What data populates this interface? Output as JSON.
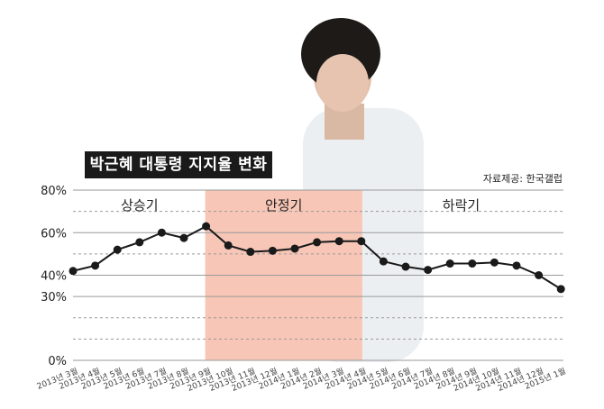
{
  "chart_data": {
    "type": "line",
    "title": "박근혜 대통령 지지율 변화",
    "source": "자료제공: 한국갤럽",
    "ylim": [
      0,
      80
    ],
    "y_ticks": [
      {
        "value": 0,
        "label": "0%"
      },
      {
        "value": 30,
        "label": "30%"
      },
      {
        "value": 40,
        "label": "40%"
      },
      {
        "value": 60,
        "label": "60%"
      },
      {
        "value": 80,
        "label": "80%"
      }
    ],
    "grid_dashed": [
      10,
      20,
      50,
      70
    ],
    "categories": [
      "2013년 3월",
      "2013년 4월",
      "2013년 5월",
      "2013년 6월",
      "2013년 7월",
      "2013년 8월",
      "2013년 9월",
      "2013년 10월",
      "2013년 11월",
      "2013년 12월",
      "2014년 1월",
      "2014년 2월",
      "2014년 3월",
      "2014년 4월",
      "2014년 5월",
      "2014년 6월",
      "2014년 7월",
      "2014년 8월",
      "2014년 9월",
      "2014년 10월",
      "2014년 11월",
      "2014년 12월",
      "2015년 1월"
    ],
    "series": [
      {
        "values": [
          42,
          44.5,
          52,
          55.5,
          60,
          57.5,
          63,
          54,
          51,
          51.5,
          52.5,
          55.5,
          56,
          56,
          46.5,
          44,
          42.5,
          45.5,
          45.5,
          46,
          44.5,
          40,
          33.5
        ]
      }
    ],
    "phases": [
      {
        "label": "상승기",
        "start": 0,
        "end": 6,
        "highlight": false
      },
      {
        "label": "안정기",
        "start": 6,
        "end": 13,
        "highlight": true
      },
      {
        "label": "하락기",
        "start": 13,
        "end": 22,
        "highlight": false
      }
    ],
    "colors": {
      "highlight": "#f7c6b6",
      "line": "#1a1a1a",
      "grid": "#9a9a9a"
    }
  }
}
